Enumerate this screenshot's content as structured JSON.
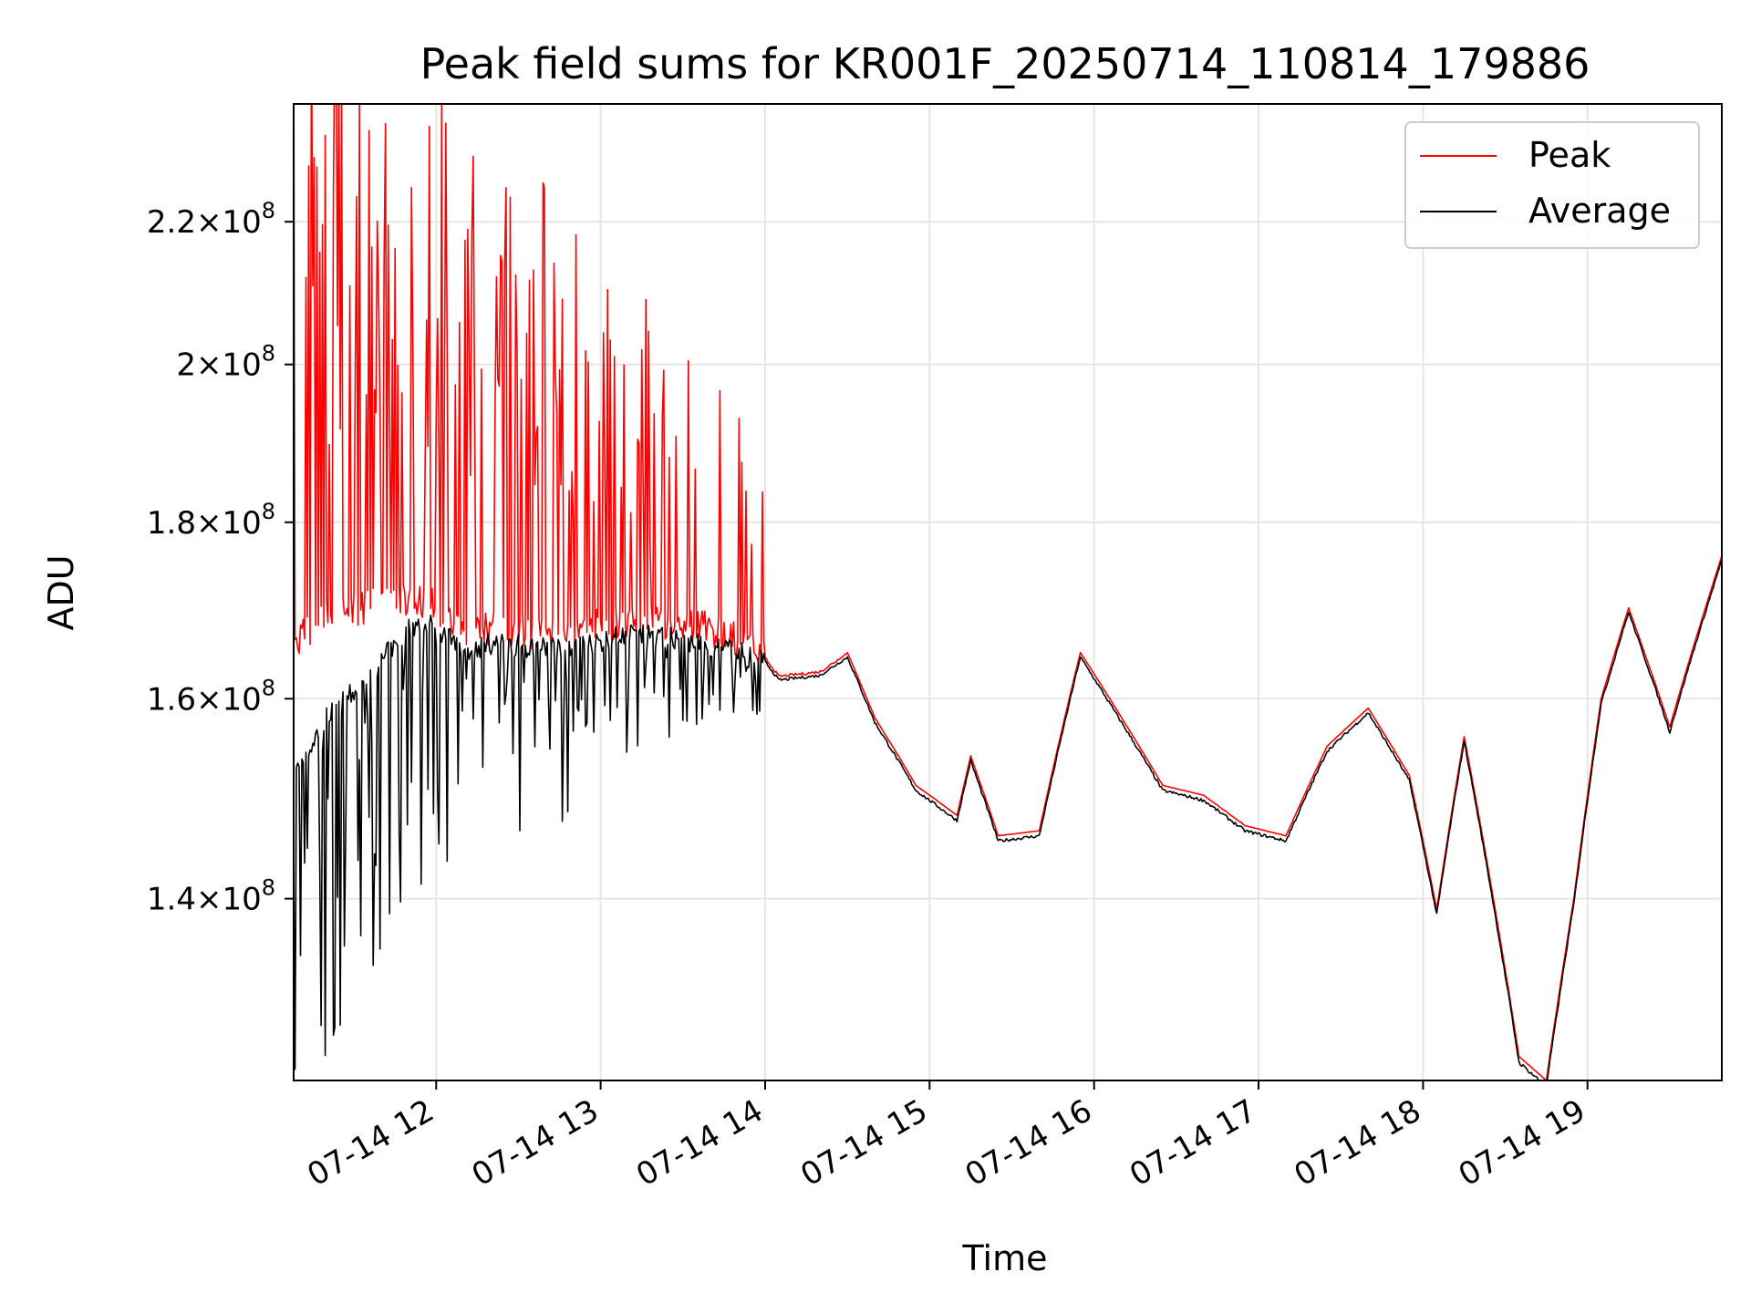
{
  "chart_data": {
    "type": "line",
    "title": "Peak field sums for KR001F_20250714_110814_179886",
    "xlabel": "Time",
    "ylabel": "ADU",
    "y_scale": "log",
    "xlim": [
      "2025-07-14 11:08",
      "2025-07-14 19:49"
    ],
    "ylim": [
      124000000,
      238000000
    ],
    "grid": true,
    "legend_position": "top-right",
    "x_ticks": [
      {
        "t": "2025-07-14 12:00",
        "label": "07-14 12"
      },
      {
        "t": "2025-07-14 13:00",
        "label": "07-14 13"
      },
      {
        "t": "2025-07-14 14:00",
        "label": "07-14 14"
      },
      {
        "t": "2025-07-14 15:00",
        "label": "07-14 15"
      },
      {
        "t": "2025-07-14 16:00",
        "label": "07-14 16"
      },
      {
        "t": "2025-07-14 17:00",
        "label": "07-14 17"
      },
      {
        "t": "2025-07-14 18:00",
        "label": "07-14 18"
      },
      {
        "t": "2025-07-14 19:00",
        "label": "07-14 19"
      }
    ],
    "y_ticks": [
      {
        "value": 140000000,
        "mant": "1.4",
        "exp": "8"
      },
      {
        "value": 160000000,
        "mant": "1.6",
        "exp": "8"
      },
      {
        "value": 180000000,
        "mant": "1.8",
        "exp": "8"
      },
      {
        "value": 200000000,
        "mant": "2",
        "exp": "8"
      },
      {
        "value": 220000000,
        "mant": "2.2",
        "exp": "8"
      }
    ],
    "series": [
      {
        "name": "Peak",
        "color": "#ff0000",
        "noisy_until": "2025-07-14 14:00",
        "points": [
          [
            "2025-07-14 11:08",
            165000000
          ],
          [
            "2025-07-14 11:20",
            168000000
          ],
          [
            "2025-07-14 11:35",
            169000000
          ],
          [
            "2025-07-14 11:50",
            170000000
          ],
          [
            "2025-07-14 12:00",
            169000000
          ],
          [
            "2025-07-14 12:10",
            166000000
          ],
          [
            "2025-07-14 12:20",
            166500000
          ],
          [
            "2025-07-14 12:40",
            166000000
          ],
          [
            "2025-07-14 12:55",
            166500000
          ],
          [
            "2025-07-14 13:10",
            167500000
          ],
          [
            "2025-07-14 13:30",
            167000000
          ],
          [
            "2025-07-14 13:45",
            166000000
          ],
          [
            "2025-07-14 14:00",
            164000000
          ],
          [
            "2025-07-14 14:05",
            162000000
          ],
          [
            "2025-07-14 14:20",
            162500000
          ],
          [
            "2025-07-14 14:30",
            165000000
          ],
          [
            "2025-07-14 14:40",
            158000000
          ],
          [
            "2025-07-14 14:55",
            151000000
          ],
          [
            "2025-07-14 15:10",
            148000000
          ],
          [
            "2025-07-14 15:15",
            154000000
          ],
          [
            "2025-07-14 15:25",
            146000000
          ],
          [
            "2025-07-14 15:40",
            146500000
          ],
          [
            "2025-07-14 15:55",
            165000000
          ],
          [
            "2025-07-14 16:10",
            158000000
          ],
          [
            "2025-07-14 16:25",
            151000000
          ],
          [
            "2025-07-14 16:40",
            150000000
          ],
          [
            "2025-07-14 16:55",
            147000000
          ],
          [
            "2025-07-14 17:10",
            146000000
          ],
          [
            "2025-07-14 17:25",
            155000000
          ],
          [
            "2025-07-14 17:40",
            159000000
          ],
          [
            "2025-07-14 17:55",
            152000000
          ],
          [
            "2025-07-14 18:05",
            139000000
          ],
          [
            "2025-07-14 18:15",
            156000000
          ],
          [
            "2025-07-14 18:35",
            126000000
          ],
          [
            "2025-07-14 18:45",
            124000000
          ],
          [
            "2025-07-14 18:55",
            140000000
          ],
          [
            "2025-07-14 19:05",
            160000000
          ],
          [
            "2025-07-14 19:15",
            170000000
          ],
          [
            "2025-07-14 19:30",
            157000000
          ],
          [
            "2025-07-14 19:49",
            176000000
          ]
        ]
      },
      {
        "name": "Average",
        "color": "#000000",
        "noisy_until": "2025-07-14 14:00",
        "points": [
          [
            "2025-07-14 11:08",
            152000000
          ],
          [
            "2025-07-14 11:20",
            158000000
          ],
          [
            "2025-07-14 11:35",
            162000000
          ],
          [
            "2025-07-14 11:50",
            168000000
          ],
          [
            "2025-07-14 12:00",
            168000000
          ],
          [
            "2025-07-14 12:10",
            165000000
          ],
          [
            "2025-07-14 12:20",
            166000000
          ],
          [
            "2025-07-14 12:40",
            165500000
          ],
          [
            "2025-07-14 12:55",
            166000000
          ],
          [
            "2025-07-14 13:10",
            167000000
          ],
          [
            "2025-07-14 13:30",
            166500000
          ],
          [
            "2025-07-14 13:45",
            165500000
          ],
          [
            "2025-07-14 14:00",
            164000000
          ],
          [
            "2025-07-14 14:05",
            162000000
          ],
          [
            "2025-07-14 14:20",
            162500000
          ],
          [
            "2025-07-14 14:30",
            164500000
          ],
          [
            "2025-07-14 14:40",
            157500000
          ],
          [
            "2025-07-14 14:55",
            150500000
          ],
          [
            "2025-07-14 15:10",
            147500000
          ],
          [
            "2025-07-14 15:15",
            153500000
          ],
          [
            "2025-07-14 15:25",
            145500000
          ],
          [
            "2025-07-14 15:40",
            146000000
          ],
          [
            "2025-07-14 15:55",
            164500000
          ],
          [
            "2025-07-14 16:10",
            157500000
          ],
          [
            "2025-07-14 16:25",
            150500000
          ],
          [
            "2025-07-14 16:40",
            149500000
          ],
          [
            "2025-07-14 16:55",
            146500000
          ],
          [
            "2025-07-14 17:10",
            145500000
          ],
          [
            "2025-07-14 17:25",
            154500000
          ],
          [
            "2025-07-14 17:40",
            158500000
          ],
          [
            "2025-07-14 17:55",
            151500000
          ],
          [
            "2025-07-14 18:05",
            138500000
          ],
          [
            "2025-07-14 18:15",
            155500000
          ],
          [
            "2025-07-14 18:35",
            125500000
          ],
          [
            "2025-07-14 18:45",
            123500000
          ],
          [
            "2025-07-14 18:55",
            139500000
          ],
          [
            "2025-07-14 19:05",
            159500000
          ],
          [
            "2025-07-14 19:15",
            169500000
          ],
          [
            "2025-07-14 19:30",
            156500000
          ],
          [
            "2025-07-14 19:49",
            175500000
          ]
        ]
      }
    ]
  }
}
